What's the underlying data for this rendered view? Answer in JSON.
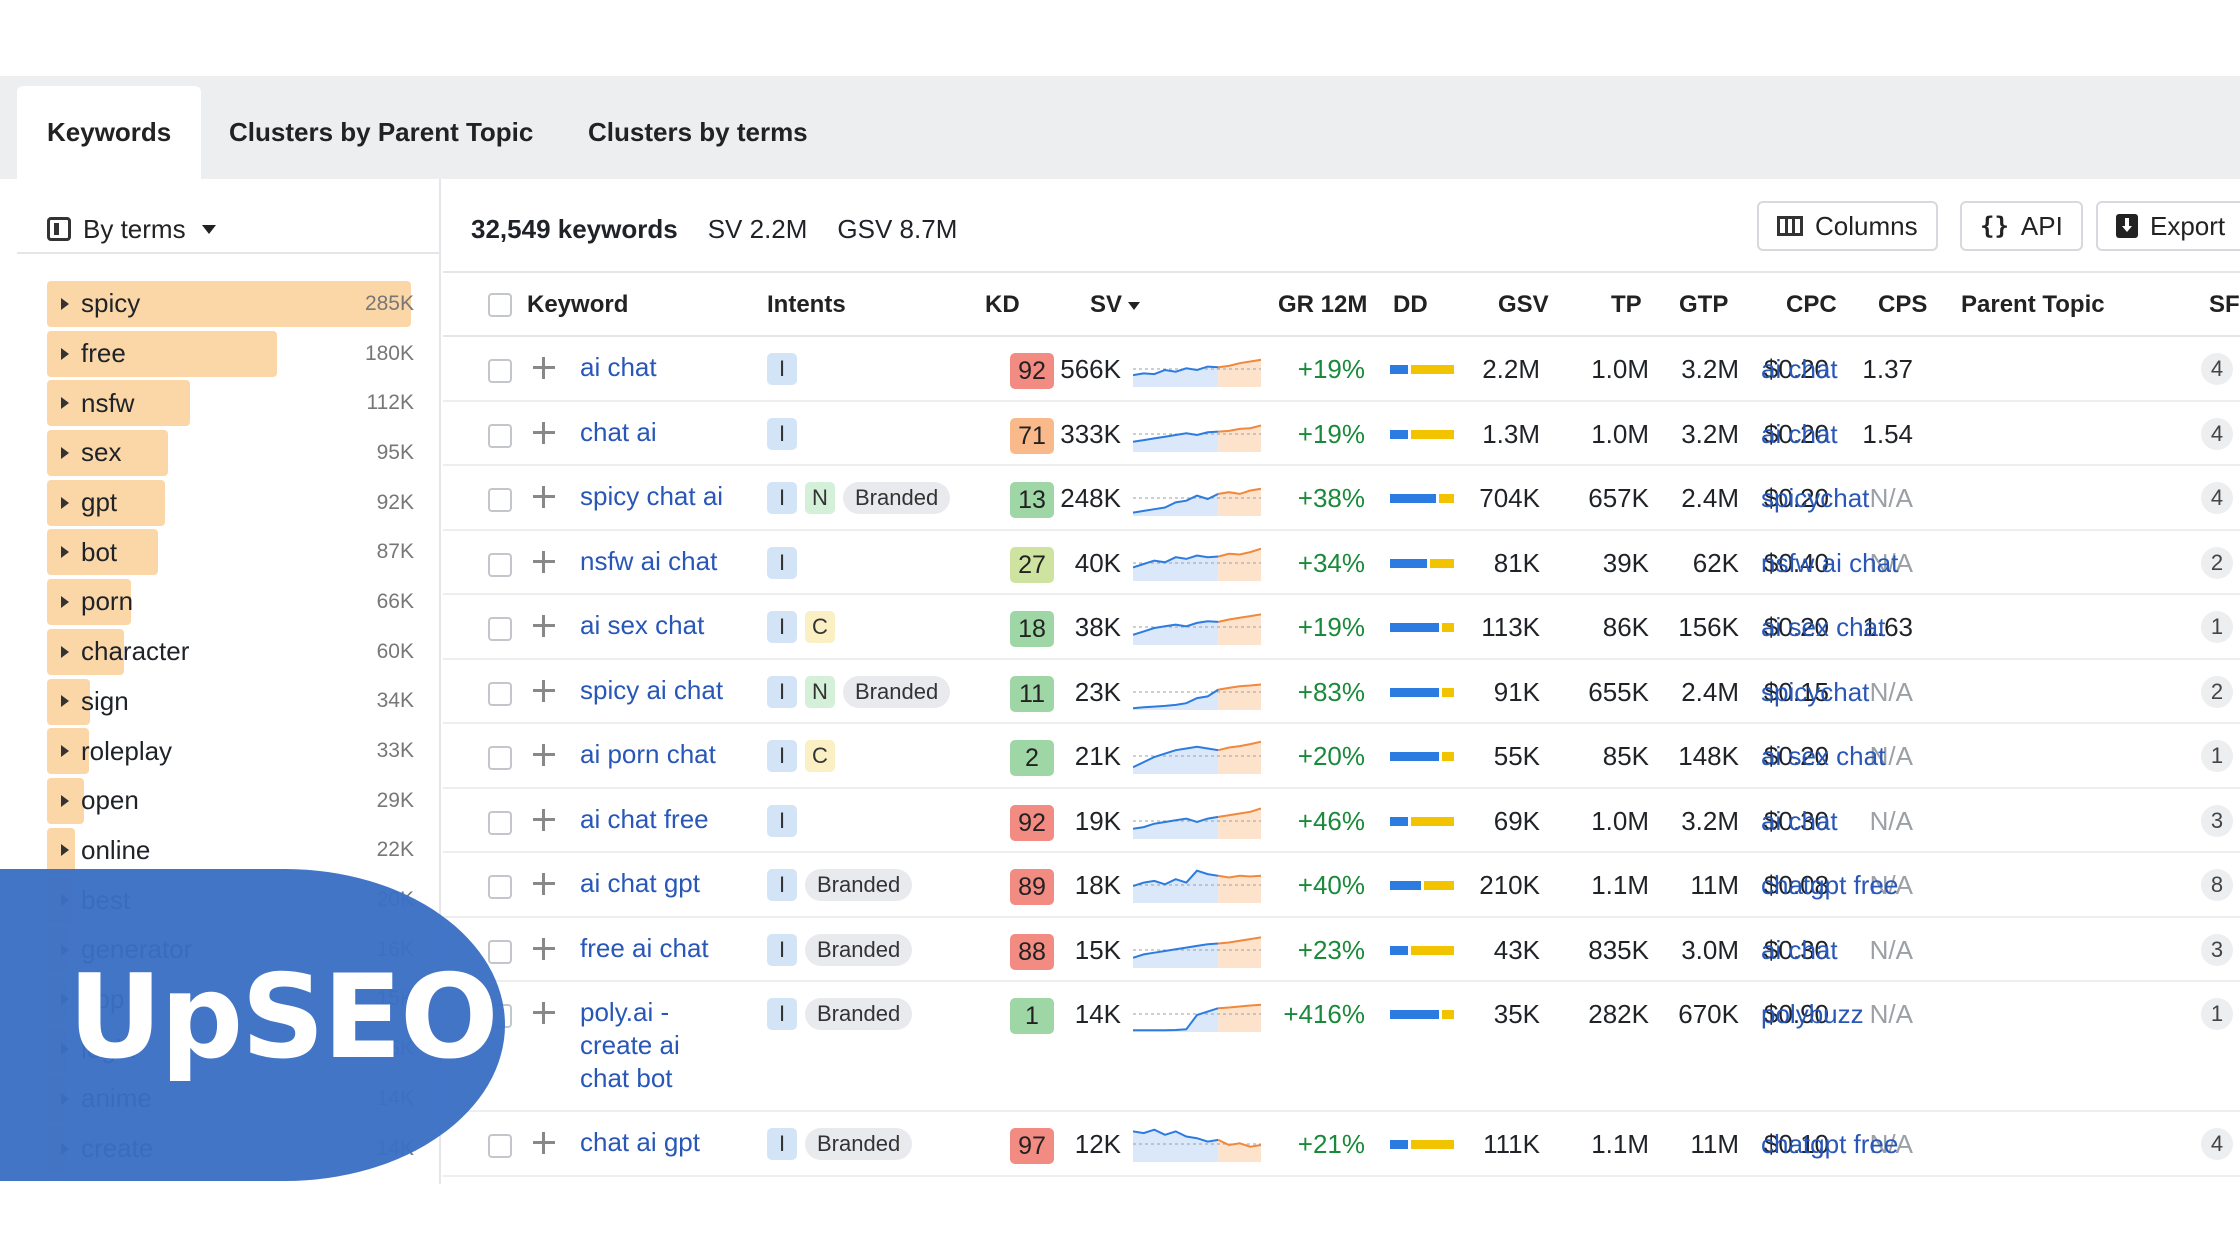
{
  "tabs": [
    {
      "label": "Keywords",
      "active": true
    },
    {
      "label": "Clusters by Parent Topic",
      "active": false
    },
    {
      "label": "Clusters by terms",
      "active": false
    }
  ],
  "sidebar": {
    "group_by_label": "By terms",
    "terms": [
      {
        "name": "spicy",
        "count": "285K",
        "value": 285
      },
      {
        "name": "free",
        "count": "180K",
        "value": 180
      },
      {
        "name": "nsfw",
        "count": "112K",
        "value": 112
      },
      {
        "name": "sex",
        "count": "95K",
        "value": 95
      },
      {
        "name": "gpt",
        "count": "92K",
        "value": 92
      },
      {
        "name": "bot",
        "count": "87K",
        "value": 87
      },
      {
        "name": "porn",
        "count": "66K",
        "value": 66
      },
      {
        "name": "character",
        "count": "60K",
        "value": 60
      },
      {
        "name": "sign",
        "count": "34K",
        "value": 34
      },
      {
        "name": "roleplay",
        "count": "33K",
        "value": 33
      },
      {
        "name": "open",
        "count": "29K",
        "value": 29
      },
      {
        "name": "online",
        "count": "22K",
        "value": 22
      },
      {
        "name": "best",
        "count": "20K",
        "value": 20
      },
      {
        "name": "generator",
        "count": "16K",
        "value": 16
      },
      {
        "name": "app",
        "count": "15K",
        "value": 15
      },
      {
        "name": "login",
        "count": "15K",
        "value": 15
      },
      {
        "name": "anime",
        "count": "14K",
        "value": 14
      },
      {
        "name": "create",
        "count": "14K",
        "value": 14
      }
    ]
  },
  "summary": {
    "keyword_count": "32,549 keywords",
    "sv": "SV 2.2M",
    "gsv": "GSV 8.7M"
  },
  "toolbar": {
    "columns_label": "Columns",
    "api_label": "API",
    "api_icon": "{}",
    "export_label": "Export"
  },
  "headers": {
    "keyword": "Keyword",
    "intents": "Intents",
    "kd": "KD",
    "sv": "SV",
    "gr": "GR 12M",
    "dd": "DD",
    "gsv": "GSV",
    "tp": "TP",
    "gtp": "GTP",
    "cpc": "CPC",
    "cps": "CPS",
    "parent": "Parent Topic",
    "sf": "SF"
  },
  "colors": {
    "kd_red": "#f28b82",
    "kd_orange": "#f9b98a",
    "kd_yellowgreen": "#cfe3a0",
    "kd_green": "#9fd6a6",
    "link": "#2857b8",
    "growth": "#1a8a3a"
  },
  "rows": [
    {
      "keyword": "ai chat",
      "intents": [
        "I"
      ],
      "kd": "92",
      "kd_color": "#f28b82",
      "sv": "566K",
      "gr": "+19%",
      "dd_blue": 0.3,
      "gsv": "2.2M",
      "tp": "1.0M",
      "gtp": "3.2M",
      "cpc": "$0.20",
      "cps": "1.37",
      "parent": "ai chat",
      "sf": "4",
      "trend": [
        0.35,
        0.4,
        0.38,
        0.5,
        0.45,
        0.55,
        0.5,
        0.6,
        0.58,
        0.62,
        0.7,
        0.75,
        0.8
      ]
    },
    {
      "keyword": "chat ai",
      "intents": [
        "I"
      ],
      "kd": "71",
      "kd_color": "#f9b98a",
      "sv": "333K",
      "gr": "+19%",
      "dd_blue": 0.3,
      "gsv": "1.3M",
      "tp": "1.0M",
      "gtp": "3.2M",
      "cpc": "$0.20",
      "cps": "1.54",
      "parent": "ai chat",
      "sf": "4",
      "trend": [
        0.3,
        0.35,
        0.4,
        0.45,
        0.5,
        0.55,
        0.5,
        0.58,
        0.6,
        0.62,
        0.68,
        0.7,
        0.78
      ]
    },
    {
      "keyword": "spicy chat ai",
      "intents": [
        "I",
        "N",
        "Branded"
      ],
      "kd": "13",
      "kd_color": "#9fd6a6",
      "sv": "248K",
      "gr": "+38%",
      "dd_blue": 0.75,
      "gsv": "704K",
      "tp": "657K",
      "gtp": "2.4M",
      "cpc": "$0.20",
      "cps": "N/A",
      "parent": "spicychat",
      "sf": "4",
      "trend": [
        0.1,
        0.15,
        0.2,
        0.25,
        0.4,
        0.45,
        0.6,
        0.5,
        0.65,
        0.7,
        0.65,
        0.75,
        0.8
      ]
    },
    {
      "keyword": "nsfw ai chat",
      "intents": [
        "I"
      ],
      "kd": "27",
      "kd_color": "#cfe3a0",
      "sv": "40K",
      "gr": "+34%",
      "dd_blue": 0.6,
      "gsv": "81K",
      "tp": "39K",
      "gtp": "62K",
      "cpc": "$0.40",
      "cps": "N/A",
      "parent": "nsfw ai chat",
      "sf": "2",
      "trend": [
        0.4,
        0.5,
        0.6,
        0.55,
        0.7,
        0.65,
        0.75,
        0.7,
        0.72,
        0.8,
        0.78,
        0.85,
        0.95
      ]
    },
    {
      "keyword": "ai sex chat",
      "intents": [
        "I",
        "C"
      ],
      "kd": "18",
      "kd_color": "#9fd6a6",
      "sv": "38K",
      "gr": "+19%",
      "dd_blue": 0.8,
      "gsv": "113K",
      "tp": "86K",
      "gtp": "156K",
      "cpc": "$0.20",
      "cps": "1.63",
      "parent": "ai sex chat",
      "sf": "1",
      "trend": [
        0.3,
        0.4,
        0.5,
        0.55,
        0.6,
        0.55,
        0.65,
        0.7,
        0.68,
        0.75,
        0.8,
        0.85,
        0.9
      ]
    },
    {
      "keyword": "spicy ai chat",
      "intents": [
        "I",
        "N",
        "Branded"
      ],
      "kd": "11",
      "kd_color": "#9fd6a6",
      "sv": "23K",
      "gr": "+83%",
      "dd_blue": 0.8,
      "gsv": "91K",
      "tp": "655K",
      "gtp": "2.4M",
      "cpc": "$0.15",
      "cps": "N/A",
      "parent": "spicychat",
      "sf": "2",
      "trend": [
        0.05,
        0.08,
        0.1,
        0.12,
        0.15,
        0.2,
        0.35,
        0.4,
        0.6,
        0.65,
        0.7,
        0.72,
        0.75
      ]
    },
    {
      "keyword": "ai porn chat",
      "intents": [
        "I",
        "C"
      ],
      "kd": "2",
      "kd_color": "#9fd6a6",
      "sv": "21K",
      "gr": "+20%",
      "dd_blue": 0.8,
      "gsv": "55K",
      "tp": "85K",
      "gtp": "148K",
      "cpc": "$0.20",
      "cps": "N/A",
      "parent": "ai sex chat",
      "sf": "1",
      "trend": [
        0.2,
        0.35,
        0.5,
        0.6,
        0.7,
        0.75,
        0.8,
        0.75,
        0.7,
        0.78,
        0.82,
        0.88,
        0.95
      ]
    },
    {
      "keyword": "ai chat free",
      "intents": [
        "I"
      ],
      "kd": "92",
      "kd_color": "#f28b82",
      "sv": "19K",
      "gr": "+46%",
      "dd_blue": 0.3,
      "gsv": "69K",
      "tp": "1.0M",
      "gtp": "3.2M",
      "cpc": "$0.30",
      "cps": "N/A",
      "parent": "ai chat",
      "sf": "3",
      "trend": [
        0.3,
        0.35,
        0.45,
        0.5,
        0.55,
        0.6,
        0.5,
        0.6,
        0.65,
        0.7,
        0.75,
        0.8,
        0.9
      ]
    },
    {
      "keyword": "ai chat gpt",
      "intents": [
        "I",
        "Branded"
      ],
      "kd": "89",
      "kd_color": "#f28b82",
      "sv": "18K",
      "gr": "+40%",
      "dd_blue": 0.5,
      "gsv": "210K",
      "tp": "1.1M",
      "gtp": "11M",
      "cpc": "$0.08",
      "cps": "N/A",
      "parent": "chatgpt free",
      "sf": "8",
      "trend": [
        0.5,
        0.6,
        0.65,
        0.55,
        0.7,
        0.6,
        0.95,
        0.85,
        0.8,
        0.75,
        0.8,
        0.78,
        0.8
      ]
    },
    {
      "keyword": "free ai chat",
      "intents": [
        "I",
        "Branded"
      ],
      "kd": "88",
      "kd_color": "#f28b82",
      "sv": "15K",
      "gr": "+23%",
      "dd_blue": 0.3,
      "gsv": "43K",
      "tp": "835K",
      "gtp": "3.0M",
      "cpc": "$0.30",
      "cps": "N/A",
      "parent": "ai chat",
      "sf": "3",
      "trend": [
        0.3,
        0.4,
        0.45,
        0.5,
        0.55,
        0.6,
        0.65,
        0.7,
        0.72,
        0.75,
        0.8,
        0.85,
        0.9
      ]
    },
    {
      "keyword": "poly.ai - create ai chat bot",
      "intents": [
        "I",
        "Branded"
      ],
      "kd": "1",
      "kd_color": "#9fd6a6",
      "sv": "14K",
      "gr": "+416%",
      "dd_blue": 0.8,
      "gsv": "35K",
      "tp": "282K",
      "gtp": "670K",
      "cpc": "$0.90",
      "cps": "N/A",
      "parent": "polybuzz",
      "sf": "1",
      "tall": true,
      "trend": [
        0.05,
        0.05,
        0.05,
        0.05,
        0.06,
        0.08,
        0.5,
        0.6,
        0.7,
        0.72,
        0.75,
        0.78,
        0.8
      ]
    },
    {
      "keyword": "chat ai gpt",
      "intents": [
        "I",
        "Branded"
      ],
      "kd": "97",
      "kd_color": "#f28b82",
      "sv": "12K",
      "gr": "+21%",
      "dd_blue": 0.3,
      "gsv": "111K",
      "tp": "1.1M",
      "gtp": "11M",
      "cpc": "$0.10",
      "cps": "N/A",
      "parent": "chatgpt free",
      "sf": "4",
      "trend": [
        0.9,
        0.85,
        0.95,
        0.8,
        0.9,
        0.75,
        0.7,
        0.6,
        0.65,
        0.5,
        0.55,
        0.45,
        0.5
      ]
    }
  ],
  "logo": {
    "text": "UpSEO"
  }
}
